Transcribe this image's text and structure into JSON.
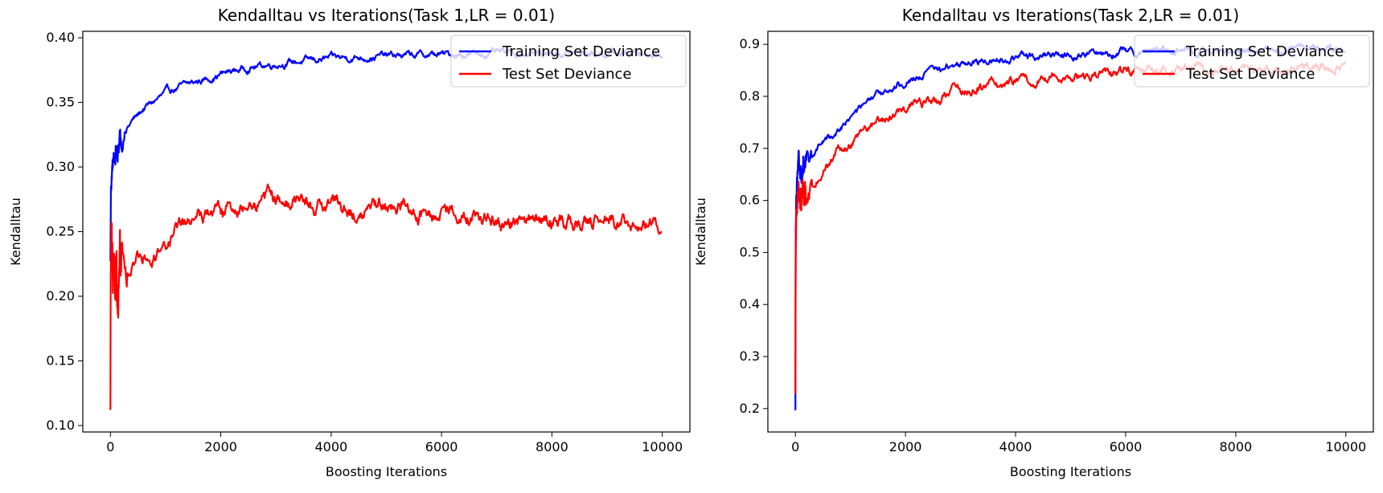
{
  "chart_data": [
    {
      "type": "line",
      "title": "Kendalltau vs Iterations(Task 1,LR = 0.01)",
      "xlabel": "Boosting Iterations",
      "ylabel": "Kendalltau",
      "xlim": [
        -500,
        10500
      ],
      "ylim": [
        0.095,
        0.405
      ],
      "xticks": [
        0,
        2000,
        4000,
        6000,
        8000,
        10000
      ],
      "xtick_labels": [
        "0",
        "2000",
        "4000",
        "6000",
        "8000",
        "10000"
      ],
      "yticks": [
        0.1,
        0.15,
        0.2,
        0.25,
        0.3,
        0.35,
        0.4
      ],
      "ytick_labels": [
        "0.10",
        "0.15",
        "0.20",
        "0.25",
        "0.30",
        "0.35",
        "0.40"
      ],
      "legend_position": "upper right",
      "series": [
        {
          "name": "Training Set Deviance",
          "color": "#0000ff",
          "x": [
            0,
            10,
            30,
            60,
            100,
            150,
            200,
            300,
            400,
            500,
            600,
            800,
            1000,
            1200,
            1500,
            1800,
            2000,
            2500,
            3000,
            3500,
            4000,
            4500,
            5000,
            6000,
            7000,
            8000,
            9000,
            10000
          ],
          "y": [
            0.225,
            0.285,
            0.298,
            0.305,
            0.31,
            0.318,
            0.323,
            0.33,
            0.336,
            0.34,
            0.345,
            0.351,
            0.357,
            0.361,
            0.365,
            0.369,
            0.372,
            0.377,
            0.38,
            0.382,
            0.384,
            0.385,
            0.386,
            0.387,
            0.388,
            0.388,
            0.388,
            0.388
          ],
          "noise": 0.0015
        },
        {
          "name": "Test Set Deviance",
          "color": "#ff0000",
          "x": [
            0,
            5,
            15,
            30,
            50,
            80,
            120,
            200,
            300,
            400,
            600,
            800,
            1000,
            1200,
            1500,
            1700,
            2000,
            2300,
            2600,
            3000,
            3500,
            4000,
            4500,
            5000,
            5500,
            6000,
            6500,
            7000,
            7500,
            8000,
            8500,
            9000,
            9500,
            10000
          ],
          "y": [
            0.107,
            0.2,
            0.24,
            0.22,
            0.225,
            0.215,
            0.22,
            0.225,
            0.218,
            0.225,
            0.23,
            0.232,
            0.24,
            0.25,
            0.26,
            0.265,
            0.265,
            0.268,
            0.271,
            0.275,
            0.272,
            0.27,
            0.27,
            0.268,
            0.266,
            0.265,
            0.262,
            0.261,
            0.259,
            0.258,
            0.258,
            0.257,
            0.256,
            0.256
          ],
          "noise": 0.0035
        }
      ]
    },
    {
      "type": "line",
      "title": "Kendalltau vs Iterations(Task 2,LR = 0.01)",
      "xlabel": "Boosting Iterations",
      "ylabel": "Kendalltau",
      "xlim": [
        -500,
        10500
      ],
      "ylim": [
        0.155,
        0.925
      ],
      "xticks": [
        0,
        2000,
        4000,
        6000,
        8000,
        10000
      ],
      "xtick_labels": [
        "0",
        "2000",
        "4000",
        "6000",
        "8000",
        "10000"
      ],
      "yticks": [
        0.2,
        0.3,
        0.4,
        0.5,
        0.6,
        0.7,
        0.8,
        0.9
      ],
      "ytick_labels": [
        "0.2",
        "0.3",
        "0.4",
        "0.5",
        "0.6",
        "0.7",
        "0.8",
        "0.9"
      ],
      "legend_position": "upper right",
      "series": [
        {
          "name": "Training Set Deviance",
          "color": "#0000ff",
          "x": [
            0,
            5,
            15,
            30,
            60,
            100,
            200,
            400,
            600,
            800,
            1000,
            1300,
            1600,
            2000,
            2500,
            3000,
            3500,
            4000,
            5000,
            6000,
            7000,
            8000,
            9000,
            10000
          ],
          "y": [
            0.19,
            0.55,
            0.63,
            0.66,
            0.675,
            0.65,
            0.675,
            0.7,
            0.72,
            0.74,
            0.76,
            0.785,
            0.81,
            0.83,
            0.85,
            0.862,
            0.87,
            0.875,
            0.882,
            0.886,
            0.888,
            0.889,
            0.889,
            0.889
          ],
          "noise": 0.004
        },
        {
          "name": "Test Set Deviance",
          "color": "#ff0000",
          "x": [
            0,
            5,
            15,
            30,
            60,
            100,
            200,
            400,
            600,
            800,
            1000,
            1300,
            1600,
            2000,
            2500,
            3000,
            3500,
            4000,
            5000,
            6000,
            7000,
            8000,
            9000,
            10000
          ],
          "y": [
            0.22,
            0.5,
            0.59,
            0.61,
            0.63,
            0.6,
            0.61,
            0.64,
            0.67,
            0.695,
            0.71,
            0.735,
            0.755,
            0.775,
            0.795,
            0.81,
            0.82,
            0.83,
            0.838,
            0.847,
            0.852,
            0.854,
            0.855,
            0.856
          ],
          "noise": 0.005
        }
      ]
    }
  ]
}
